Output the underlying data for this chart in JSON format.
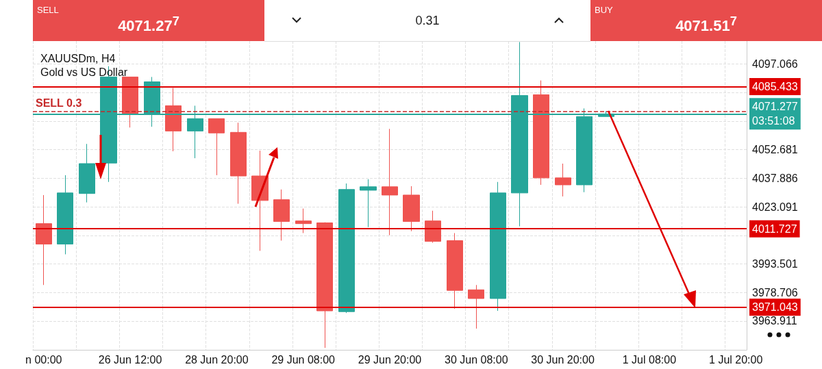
{
  "chart_data": {
    "type": "candlestick",
    "title": "XAUUSDm, H4",
    "subtitle": "Gold vs US Dollar",
    "annotations": [
      "SELL",
      "4071.27$^{7}$",
      "0.31",
      "BUY",
      "4071.51$^{7}$"
    ],
    "categories": [
      "n 00:00",
      null,
      null,
      null,
      "26 Jun 12:00",
      null,
      null,
      null,
      "28 Jun 20:00",
      null,
      null,
      null,
      "29 Jun 08:00",
      null,
      null,
      null,
      "29 Jun 20:00",
      null,
      null,
      null,
      "30 Jun 08:00",
      null,
      null,
      null,
      "30 Jun 20:00",
      null,
      null,
      null,
      "1 Jul 08:00",
      null,
      null,
      null,
      "1 Jul 20:00"
    ],
    "ohlc": [
      [
        4014.4,
        4029.2,
        3982.6,
        4003.8
      ],
      [
        4003.8,
        4039.5,
        3998.5,
        4030.3
      ],
      [
        4030.0,
        4055.7,
        4025.4,
        4045.5
      ],
      [
        4045.8,
        4096.0,
        4036.0,
        4090.4
      ],
      [
        4090.4,
        4090.4,
        4064.2,
        4071.3
      ],
      [
        4071.3,
        4090.4,
        4064.6,
        4087.9
      ],
      [
        4075.5,
        4084.7,
        4051.9,
        4062.4
      ],
      [
        4062.4,
        4075.5,
        4048.3,
        4068.8
      ],
      [
        4068.8,
        4068.8,
        4039.5,
        4061.4
      ],
      [
        4061.7,
        4066.7,
        4024.7,
        4039.1
      ],
      [
        4039.1,
        4052.2,
        4000.3,
        4026.4
      ],
      [
        4026.8,
        4032.1,
        4005.6,
        4015.5
      ],
      [
        4015.8,
        4022.2,
        4009.5,
        4014.4
      ],
      [
        4014.8,
        4015.1,
        3950.0,
        3969.2
      ],
      [
        3968.8,
        4035.2,
        3968.1,
        4032.1
      ],
      [
        4031.7,
        4037.4,
        4012.6,
        4033.5
      ],
      [
        4033.5,
        4063.5,
        4008.4,
        4029.2
      ],
      [
        4029.2,
        4033.8,
        4010.5,
        4015.5
      ],
      [
        4015.8,
        4021.1,
        4004.5,
        4005.2
      ],
      [
        4005.6,
        4009.5,
        3970.3,
        3979.8
      ],
      [
        3980.1,
        3982.6,
        3960.0,
        3975.6
      ],
      [
        3975.6,
        4036.0,
        3969.2,
        4030.3
      ],
      [
        4030.3,
        4108.5,
        4013.0,
        4080.8
      ],
      [
        4081.2,
        4088.6,
        4034.5,
        4038.1
      ],
      [
        4038.1,
        4045.5,
        4028.5,
        4034.5
      ],
      [
        4034.5,
        4074.1,
        4030.7,
        4069.9
      ],
      [
        4069.9,
        4072.7,
        4069.9,
        4071.277
      ],
      null,
      null,
      null,
      null,
      null,
      null
    ],
    "colors": [
      "#ef5350",
      "#26a69a",
      "#26a69a",
      "#26a69a",
      "#ef5350",
      "#26a69a",
      "#ef5350",
      "#26a69a",
      "#ef5350",
      "#ef5350",
      "#ef5350",
      "#ef5350",
      "#ef5350",
      "#ef5350",
      "#26a69a",
      "#26a69a",
      "#ef5350",
      "#ef5350",
      "#ef5350",
      "#ef5350",
      "#ef5350",
      "#26a69a",
      "#26a69a",
      "#ef5350",
      "#ef5350",
      "#26a69a",
      "#26a69a",
      null,
      null,
      null,
      null,
      null,
      null
    ],
    "ylim": [
      3949,
      4109
    ],
    "yticks": [
      3963.911,
      3978.706,
      3993.501,
      {
        "value": 4008.296,
        "label": null
      },
      4023.091,
      4037.886,
      4052.681,
      {
        "value": 4067.476,
        "label": null
      },
      {
        "value": 4082.271,
        "label": null
      },
      4097.066
    ],
    "ref_lines": [
      {
        "axis": "y",
        "value": 4085.433,
        "label": "4085.433",
        "color": "#e00000",
        "line_style": "solid"
      },
      {
        "axis": "y",
        "value": 4011.727,
        "label": "4011.727",
        "color": "#e00000",
        "line_style": "solid"
      },
      {
        "axis": "y",
        "value": 3971.043,
        "label": "3971.043",
        "color": "#e00000",
        "line_style": "solid"
      },
      {
        "axis": "y",
        "value": 4072.7,
        "label": "SELL 0.3",
        "color": "#c62828",
        "line_style": "dashed"
      },
      {
        "axis": "y",
        "value": 4071.277,
        "label": "4071.277\n03:51:08",
        "color": "#26a69a",
        "line_style": "solid"
      }
    ],
    "grid": true
  }
}
